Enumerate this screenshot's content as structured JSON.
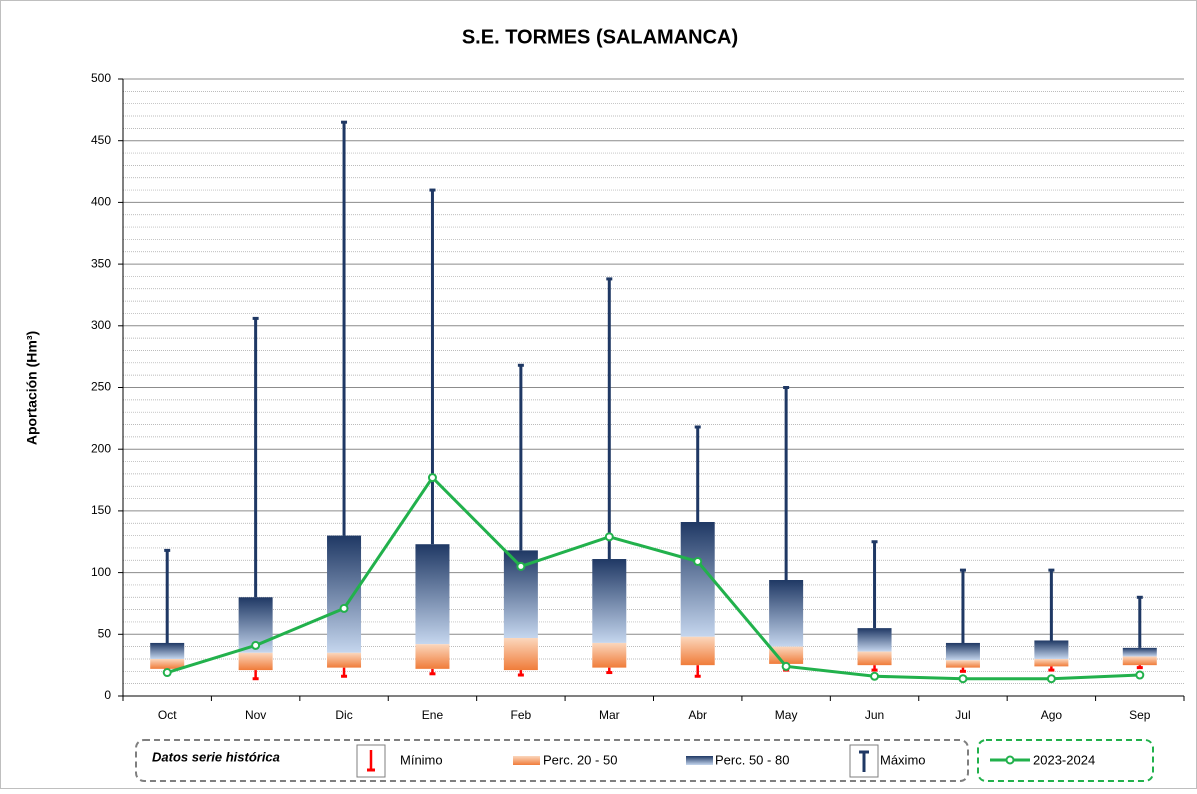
{
  "chart_data": {
    "type": "box",
    "title": "S.E. TORMES (SALAMANCA)",
    "ylabel": "Aportación (Hm³)",
    "categories": [
      "Oct",
      "Nov",
      "Dic",
      "Ene",
      "Feb",
      "Mar",
      "Abr",
      "May",
      "Jun",
      "Jul",
      "Ago",
      "Sep"
    ],
    "ylim": [
      0,
      500
    ],
    "yticks": [
      0,
      50,
      100,
      150,
      200,
      250,
      300,
      350,
      400,
      450,
      500
    ],
    "grid": true,
    "minor_grid": true,
    "legend_title": "Datos serie histórica",
    "boxes": {
      "min": {
        "name": "Mínimo",
        "color": "#ff0000",
        "values": [
          22,
          14,
          16,
          18,
          17,
          19,
          16,
          21,
          21,
          20,
          21,
          23
        ]
      },
      "p20_50": {
        "name": "Perc. 20 - 50",
        "color": "#f07c3a",
        "low": [
          22,
          21,
          23,
          22,
          21,
          23,
          25,
          26,
          25,
          23,
          24,
          25
        ],
        "high": [
          30,
          35,
          35,
          42,
          47,
          43,
          48,
          40,
          36,
          29,
          30,
          32
        ]
      },
      "p50_80": {
        "name": "Perc. 50 - 80",
        "color": "#1f3864",
        "high": [
          43,
          80,
          130,
          123,
          118,
          111,
          141,
          94,
          55,
          43,
          45,
          39
        ]
      },
      "max": {
        "name": "Máximo",
        "color": "#1f3864",
        "values": [
          118,
          306,
          465,
          410,
          268,
          338,
          218,
          250,
          125,
          102,
          102,
          80
        ]
      }
    },
    "series": [
      {
        "name": "2023-2024",
        "color": "#22b14c",
        "values": [
          19,
          41,
          71,
          177,
          105,
          129,
          109,
          24,
          16,
          14,
          14,
          17
        ]
      }
    ]
  }
}
